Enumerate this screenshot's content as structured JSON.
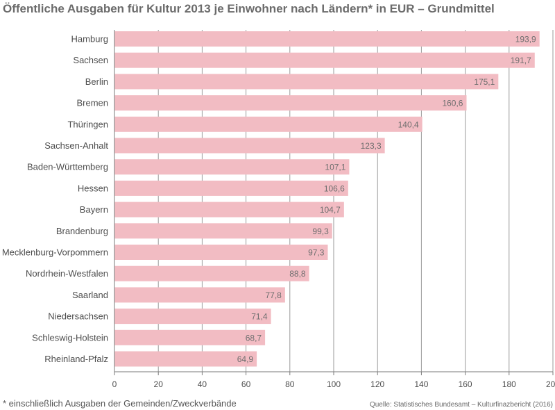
{
  "header": {
    "title": "Öffentliche Ausgaben für Kultur 2013 je Einwohner nach Ländern* in EUR – Grundmittel"
  },
  "footer": {
    "footnote": "* einschließlich Ausgaben der Gemeinden/Zweckverbände",
    "source": "Quelle: Statistisches Bundesamt – Kulturfinazbericht (2016)"
  },
  "colors": {
    "bar": "#f2bcc3",
    "grid": "#9a9a9a",
    "axis": "#7a7a7a"
  },
  "chart_data": {
    "type": "bar",
    "orientation": "horizontal",
    "title": "Öffentliche Ausgaben für Kultur 2013 je Einwohner nach Ländern* in EUR – Grundmittel",
    "xlabel": "",
    "ylabel": "",
    "xlim": [
      0,
      200
    ],
    "ticks": [
      0,
      20,
      40,
      60,
      80,
      100,
      120,
      140,
      160,
      180,
      200
    ],
    "grid": true,
    "legend": "none",
    "categories": [
      "Hamburg",
      "Sachsen",
      "Berlin",
      "Bremen",
      "Thüringen",
      "Sachsen-Anhalt",
      "Baden-Württemberg",
      "Hessen",
      "Bayern",
      "Brandenburg",
      "Mecklenburg-Vorpommern",
      "Nordrhein-Westfalen",
      "Saarland",
      "Niedersachsen",
      "Schleswig-Holstein",
      "Rheinland-Pfalz"
    ],
    "values": [
      193.9,
      191.7,
      175.1,
      160.6,
      140.4,
      123.3,
      107.1,
      106.6,
      104.7,
      99.3,
      97.3,
      88.8,
      77.8,
      71.4,
      68.7,
      64.9
    ],
    "value_labels": [
      "193,9",
      "191,7",
      "175,1",
      "160,6",
      "140,4",
      "123,3",
      "107,1",
      "106,6",
      "104,7",
      "99,3",
      "97,3",
      "88,8",
      "77,8",
      "71,4",
      "68,7",
      "64,9"
    ]
  }
}
